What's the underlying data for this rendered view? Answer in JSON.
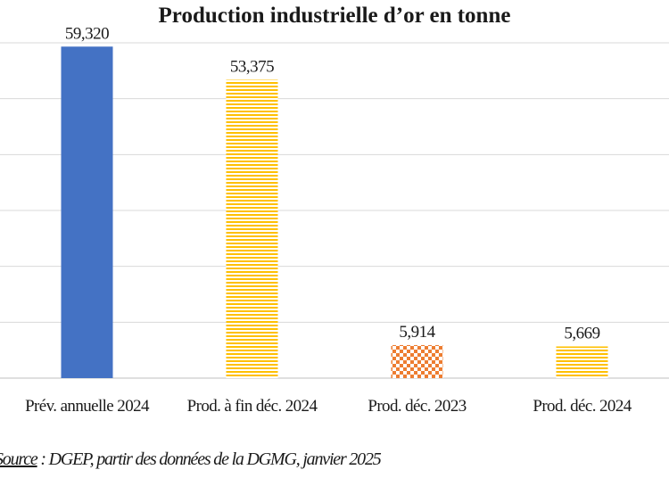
{
  "chart_data": {
    "type": "bar",
    "title": "Production industrielle d’or en tonne",
    "categories": [
      "Prév. annuelle 2024",
      "Prod. à fin déc. 2024",
      "Prod. déc. 2023",
      "Prod. déc. 2024"
    ],
    "values": [
      59.32,
      53.375,
      5.914,
      5.669
    ],
    "value_labels": [
      "59,320",
      "53,375",
      "5,914",
      "5,669"
    ],
    "ylim": [
      0,
      60
    ],
    "grid": true,
    "legend": "none",
    "xlabel": "",
    "ylabel": "",
    "colors": {
      "bar_solid": "#4472c4",
      "bar_stripe": "#ffc000",
      "bar_checker": "#ed7d31",
      "grid": "#d9d9d9"
    },
    "bar_patterns": [
      "solid",
      "horizontal-stripes",
      "checker",
      "horizontal-stripes"
    ]
  },
  "source": {
    "label": "Source",
    "text": " : DGEP,  partir des données de la DGMG, janvier 2025"
  }
}
